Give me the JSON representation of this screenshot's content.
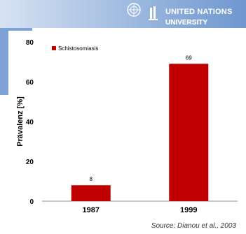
{
  "header": {
    "org_name": "UNITED NATIONS",
    "org_subname": "UNIVERSITY"
  },
  "source_text": "Source: Dianou et al., 2003",
  "colors": {
    "bar": "#c00000",
    "band_light": "#d7e3f3",
    "band_dark": "#6f97cf",
    "text": "#000000"
  },
  "chart_data": {
    "type": "bar",
    "categories": [
      "1987",
      "1999"
    ],
    "series": [
      {
        "name": "Schistosomiasis",
        "values": [
          8,
          69
        ]
      }
    ],
    "ylabel": "Prävalenz [%]",
    "ylim": [
      0,
      80
    ],
    "yticks": [
      0,
      20,
      40,
      60,
      80
    ],
    "grid": false,
    "legend_position": "top-left",
    "data_labels": true
  }
}
